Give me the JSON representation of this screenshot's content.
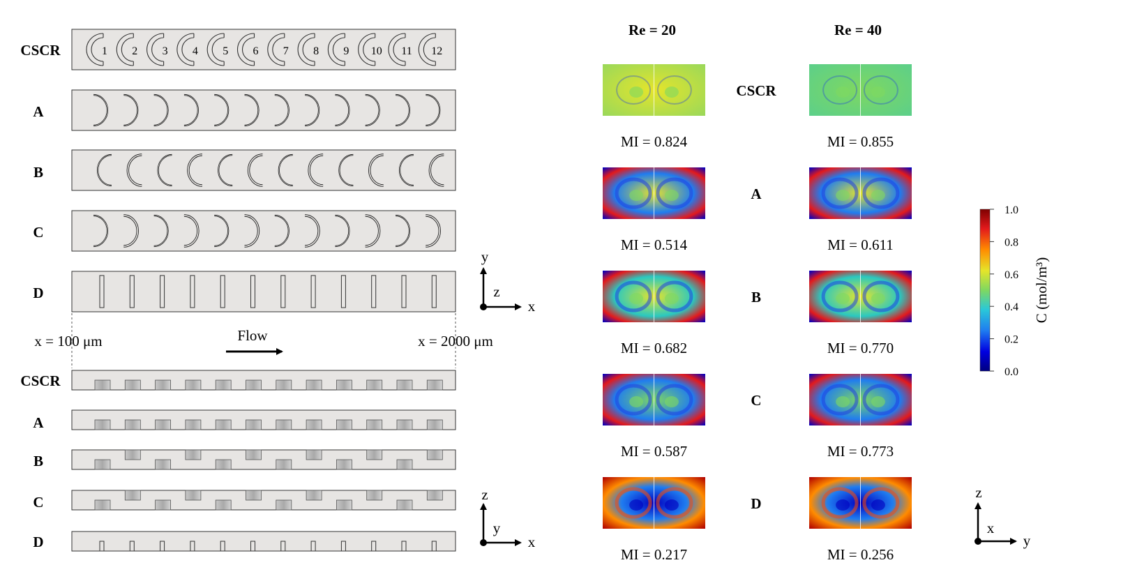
{
  "left": {
    "top_view_labels": [
      "CSCR",
      "A",
      "B",
      "C",
      "D"
    ],
    "side_view_labels": [
      "CSCR",
      "A",
      "B",
      "C",
      "D"
    ],
    "rib_numbers": [
      "1",
      "2",
      "3",
      "4",
      "5",
      "6",
      "7",
      "8",
      "9",
      "10",
      "11",
      "12"
    ],
    "x_start_label": "x = 100 μm",
    "x_end_label": "x = 2000 μm",
    "flow_label": "Flow",
    "axes_top": {
      "up": "y",
      "center": "z",
      "right": "x"
    },
    "axes_bottom": {
      "up": "z",
      "center": "y",
      "right": "x"
    }
  },
  "right": {
    "column_headers": [
      "Re = 20",
      "Re = 40"
    ],
    "row_labels": [
      "CSCR",
      "A",
      "B",
      "C",
      "D"
    ],
    "mi_re20": [
      "MI = 0.824",
      "MI = 0.514",
      "MI = 0.682",
      "MI = 0.587",
      "MI = 0.217"
    ],
    "mi_re40": [
      "MI = 0.855",
      "MI = 0.611",
      "MI = 0.770",
      "MI = 0.773",
      "MI = 0.256"
    ],
    "colorbar": {
      "ticks": [
        "1.0",
        "0.8",
        "0.6",
        "0.4",
        "0.2",
        "0.0"
      ],
      "label": "C (mol/m³)",
      "colors": [
        "#7f0000",
        "#e31a1c",
        "#ff8c00",
        "#e5e52a",
        "#7fd860",
        "#2ac8c0",
        "#1f7cf0",
        "#0000c0",
        "#00007f"
      ]
    },
    "axes": {
      "up": "z",
      "center": "x",
      "right": "y"
    }
  }
}
